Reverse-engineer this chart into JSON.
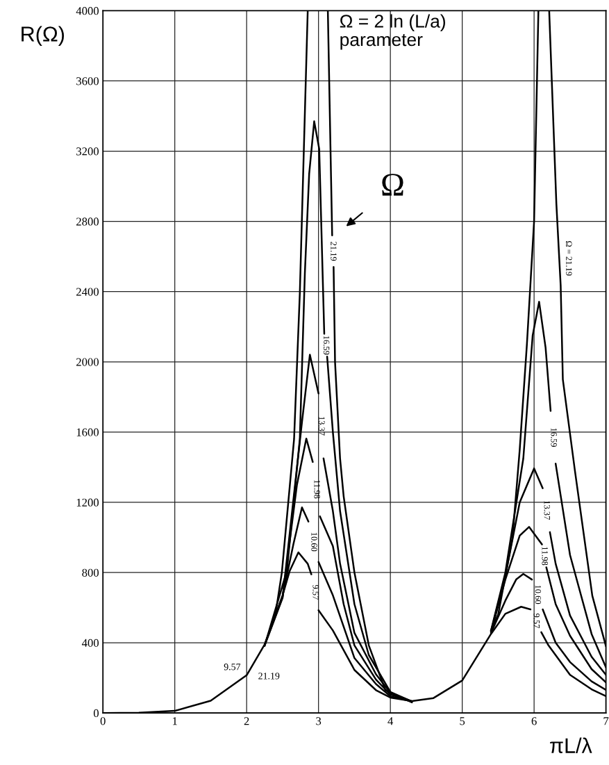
{
  "chart_data": {
    "type": "line",
    "xlabel": "πL/λ",
    "ylabel": "R(Ω)",
    "xlim": [
      0,
      7
    ],
    "xticks": [
      0,
      1,
      2,
      3,
      4,
      5,
      6,
      7
    ],
    "ylim": [
      0,
      4000
    ],
    "yticks": [
      0,
      400,
      800,
      1200,
      1600,
      2000,
      2400,
      2800,
      3200,
      3600,
      4000
    ],
    "grid": true,
    "series": [
      {
        "name": "9.57",
        "color": "#000000",
        "x": [
          0,
          0.5,
          1,
          1.5,
          2,
          2.25,
          2.5,
          2.6,
          2.72,
          2.85,
          2.9,
          2.95,
          3.0,
          3.2,
          3.5,
          3.8,
          4.0,
          4.3,
          4.6,
          5.0,
          5.4,
          5.6,
          5.82,
          5.95,
          6.04,
          6.1,
          6.2,
          6.5,
          6.8,
          7.0
        ],
        "values": [
          0,
          2,
          12,
          70,
          215,
          390,
          670,
          810,
          915,
          850,
          790,
          null,
          585,
          470,
          245,
          130,
          88,
          68,
          85,
          185,
          450,
          565,
          605,
          590,
          null,
          460,
          385,
          217,
          135,
          96
        ]
      },
      {
        "name": "10.60",
        "color": "#000000",
        "x": [
          2.25,
          2.5,
          2.65,
          2.77,
          2.86,
          2.92,
          3.0,
          3.2,
          3.5,
          3.8,
          4.0,
          4.3,
          4.6,
          5.0,
          5.4,
          5.6,
          5.75,
          5.85,
          5.97,
          6.05,
          6.12,
          6.3,
          6.5,
          6.8,
          7.0
        ],
        "values": [
          388,
          665,
          960,
          1171,
          1090,
          null,
          860,
          670,
          313,
          165,
          95,
          66,
          null,
          null,
          455,
          640,
          760,
          792,
          760,
          null,
          590,
          400,
          290,
          180,
          131
        ]
      },
      {
        "name": "11.98",
        "color": "#000000",
        "x": [
          2.25,
          2.5,
          2.7,
          2.83,
          2.92,
          2.97,
          3.02,
          3.2,
          3.35,
          3.5,
          3.8,
          4.0,
          4.3,
          4.6,
          5.0,
          5.4,
          5.6,
          5.8,
          5.93,
          6.11,
          6.14,
          6.17,
          6.3,
          6.5,
          6.8,
          7.0
        ],
        "values": [
          386,
          660,
          1300,
          1563,
          1430,
          null,
          1120,
          950,
          620,
          385,
          190,
          105,
          66,
          null,
          null,
          460,
          760,
          1010,
          1060,
          960,
          null,
          830,
          620,
          440,
          250,
          174
        ]
      },
      {
        "name": "13.37",
        "color": "#000000",
        "x": [
          2.25,
          2.5,
          2.77,
          2.88,
          3.0,
          3.04,
          3.07,
          3.2,
          3.3,
          3.5,
          3.8,
          4.0,
          4.3,
          4.6,
          5.0,
          5.4,
          5.6,
          5.8,
          6.0,
          6.12,
          6.17,
          6.22,
          6.3,
          6.5,
          6.8,
          7.0
        ],
        "values": [
          384,
          655,
          1657,
          2041,
          1820,
          null,
          1450,
          1150,
          850,
          456,
          220,
          115,
          66,
          null,
          null,
          465,
          780,
          1200,
          1393,
          1280,
          null,
          1030,
          850,
          555,
          320,
          217
        ]
      },
      {
        "name": "16.59",
        "color": "#000000",
        "x": [
          2.25,
          2.56,
          2.74,
          2.81,
          2.87,
          2.94,
          3.01,
          3.08,
          3.11,
          3.12,
          3.2,
          3.3,
          3.5,
          3.7,
          4.0,
          4.3,
          4.6,
          5.0,
          5.4,
          5.6,
          5.85,
          5.98,
          6.07,
          6.16,
          6.23,
          6.27,
          6.3,
          6.5,
          6.8,
          7.0
        ],
        "values": [
          382,
          810,
          1560,
          2504,
          3070,
          3370,
          3212,
          2160,
          null,
          2030,
          1600,
          1150,
          620,
          330,
          120,
          65,
          null,
          null,
          468,
          800,
          1450,
          2150,
          2342,
          2081,
          1720,
          null,
          1420,
          900,
          450,
          260
        ]
      },
      {
        "name": "21.19",
        "color": "#000000",
        "x": [
          2.4,
          2.49,
          2.66,
          2.74,
          2.85,
          2.99,
          3.13,
          3.19,
          3.2,
          3.21,
          3.23,
          3.3,
          3.35,
          3.5,
          3.7,
          3.93,
          4.3,
          4.6,
          5.0,
          5.4,
          5.5,
          5.7,
          5.8,
          5.9,
          6.0,
          6.06,
          6.13,
          6.21,
          6.31,
          6.37,
          6.4,
          6.57,
          6.81,
          7.0
        ],
        "values": [
          560,
          800,
          1560,
          2390,
          4000,
          null,
          4000,
          2720,
          null,
          2540,
          2000,
          1450,
          1234,
          800,
          385,
          130,
          60,
          null,
          null,
          470,
          560,
          1000,
          1500,
          2100,
          2800,
          4000,
          null,
          4000,
          2900,
          2434,
          1900,
          1374,
          668,
          380
        ]
      }
    ],
    "annotations": [
      "Ω = 2 ln (L/a)\nparameter",
      "Ω",
      "9.57",
      "21.19",
      "Ω = 21.19"
    ]
  }
}
